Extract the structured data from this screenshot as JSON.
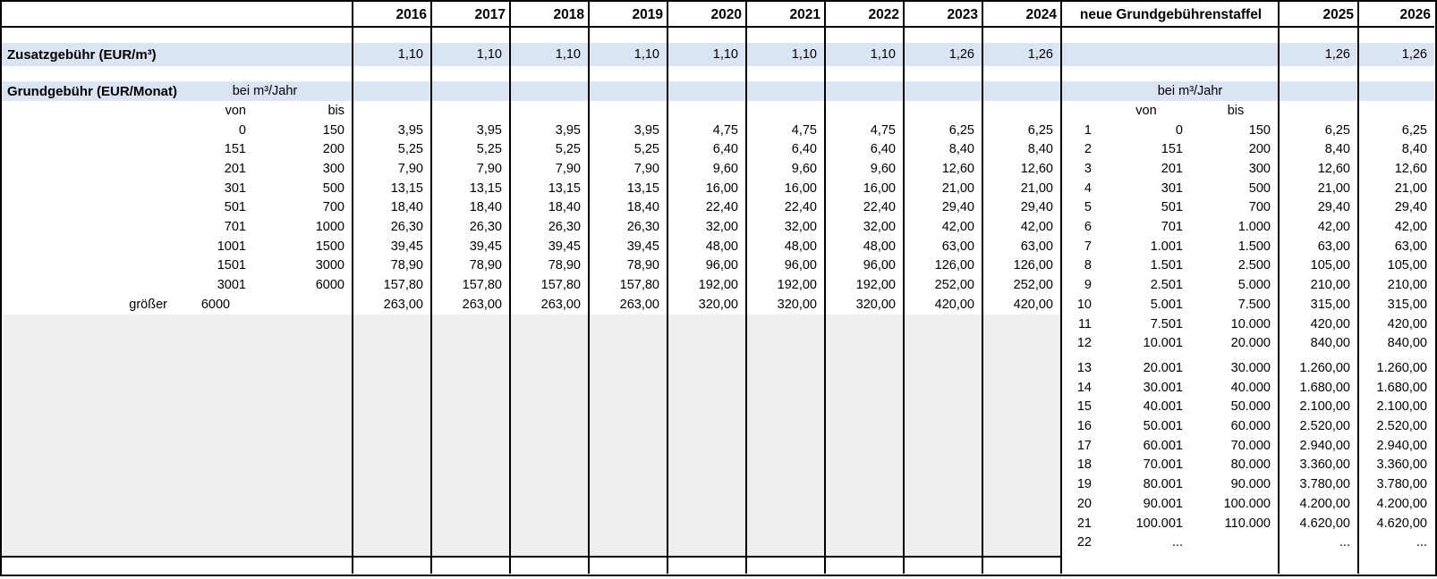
{
  "header": {
    "years_left": [
      "2016",
      "2017",
      "2018",
      "2019",
      "2020",
      "2021",
      "2022",
      "2023",
      "2024"
    ],
    "new_schedule_label": "neue Grundgebührenstaffel",
    "years_right": [
      "2025",
      "2026"
    ]
  },
  "zusatzgebuehr_row": {
    "label": "Zusatzgebühr (EUR/m³)",
    "values_left": [
      "1,10",
      "1,10",
      "1,10",
      "1,10",
      "1,10",
      "1,10",
      "1,10",
      "1,26",
      "1,26"
    ],
    "values_right": [
      "1,26",
      "1,26"
    ]
  },
  "grundgebuehr_section": {
    "label": "Grundgebühr (EUR/Monat)",
    "unit_label": "bei m³/Jahr",
    "von_label": "von",
    "bis_label": "bis",
    "rows": [
      {
        "label": "",
        "von": "0",
        "bis": "150",
        "values": [
          "3,95",
          "3,95",
          "3,95",
          "3,95",
          "4,75",
          "4,75",
          "4,75",
          "6,25",
          "6,25"
        ]
      },
      {
        "label": "",
        "von": "151",
        "bis": "200",
        "values": [
          "5,25",
          "5,25",
          "5,25",
          "5,25",
          "6,40",
          "6,40",
          "6,40",
          "8,40",
          "8,40"
        ]
      },
      {
        "label": "",
        "von": "201",
        "bis": "300",
        "values": [
          "7,90",
          "7,90",
          "7,90",
          "7,90",
          "9,60",
          "9,60",
          "9,60",
          "12,60",
          "12,60"
        ]
      },
      {
        "label": "",
        "von": "301",
        "bis": "500",
        "values": [
          "13,15",
          "13,15",
          "13,15",
          "13,15",
          "16,00",
          "16,00",
          "16,00",
          "21,00",
          "21,00"
        ]
      },
      {
        "label": "",
        "von": "501",
        "bis": "700",
        "values": [
          "18,40",
          "18,40",
          "18,40",
          "18,40",
          "22,40",
          "22,40",
          "22,40",
          "29,40",
          "29,40"
        ]
      },
      {
        "label": "",
        "von": "701",
        "bis": "1000",
        "values": [
          "26,30",
          "26,30",
          "26,30",
          "26,30",
          "32,00",
          "32,00",
          "32,00",
          "42,00",
          "42,00"
        ]
      },
      {
        "label": "",
        "von": "1001",
        "bis": "1500",
        "values": [
          "39,45",
          "39,45",
          "39,45",
          "39,45",
          "48,00",
          "48,00",
          "48,00",
          "63,00",
          "63,00"
        ]
      },
      {
        "label": "",
        "von": "1501",
        "bis": "3000",
        "values": [
          "78,90",
          "78,90",
          "78,90",
          "78,90",
          "96,00",
          "96,00",
          "96,00",
          "126,00",
          "126,00"
        ]
      },
      {
        "label": "",
        "von": "3001",
        "bis": "6000",
        "values": [
          "157,80",
          "157,80",
          "157,80",
          "157,80",
          "192,00",
          "192,00",
          "192,00",
          "252,00",
          "252,00"
        ]
      },
      {
        "label": "größer",
        "von": "6000",
        "bis": "",
        "values": [
          "263,00",
          "263,00",
          "263,00",
          "263,00",
          "320,00",
          "320,00",
          "320,00",
          "420,00",
          "420,00"
        ]
      }
    ]
  },
  "new_schedule_section": {
    "unit_label": "bei m³/Jahr",
    "von_label": "von",
    "bis_label": "bis",
    "rows": [
      {
        "nr": "1",
        "von": "0",
        "bis": "150",
        "v2025": "6,25",
        "v2026": "6,25"
      },
      {
        "nr": "2",
        "von": "151",
        "bis": "200",
        "v2025": "8,40",
        "v2026": "8,40"
      },
      {
        "nr": "3",
        "von": "201",
        "bis": "300",
        "v2025": "12,60",
        "v2026": "12,60"
      },
      {
        "nr": "4",
        "von": "301",
        "bis": "500",
        "v2025": "21,00",
        "v2026": "21,00"
      },
      {
        "nr": "5",
        "von": "501",
        "bis": "700",
        "v2025": "29,40",
        "v2026": "29,40"
      },
      {
        "nr": "6",
        "von": "701",
        "bis": "1.000",
        "v2025": "42,00",
        "v2026": "42,00"
      },
      {
        "nr": "7",
        "von": "1.001",
        "bis": "1.500",
        "v2025": "63,00",
        "v2026": "63,00"
      },
      {
        "nr": "8",
        "von": "1.501",
        "bis": "2.500",
        "v2025": "105,00",
        "v2026": "105,00"
      },
      {
        "nr": "9",
        "von": "2.501",
        "bis": "5.000",
        "v2025": "210,00",
        "v2026": "210,00"
      },
      {
        "nr": "10",
        "von": "5.001",
        "bis": "7.500",
        "v2025": "315,00",
        "v2026": "315,00"
      },
      {
        "nr": "11",
        "von": "7.501",
        "bis": "10.000",
        "v2025": "420,00",
        "v2026": "420,00"
      },
      {
        "nr": "12",
        "von": "10.001",
        "bis": "20.000",
        "v2025": "840,00",
        "v2026": "840,00"
      },
      {
        "nr": "13",
        "von": "20.001",
        "bis": "30.000",
        "v2025": "1.260,00",
        "v2026": "1.260,00"
      },
      {
        "nr": "14",
        "von": "30.001",
        "bis": "40.000",
        "v2025": "1.680,00",
        "v2026": "1.680,00"
      },
      {
        "nr": "15",
        "von": "40.001",
        "bis": "50.000",
        "v2025": "2.100,00",
        "v2026": "2.100,00"
      },
      {
        "nr": "16",
        "von": "50.001",
        "bis": "60.000",
        "v2025": "2.520,00",
        "v2026": "2.520,00"
      },
      {
        "nr": "17",
        "von": "60.001",
        "bis": "70.000",
        "v2025": "2.940,00",
        "v2026": "2.940,00"
      },
      {
        "nr": "18",
        "von": "70.001",
        "bis": "80.000",
        "v2025": "3.360,00",
        "v2026": "3.360,00"
      },
      {
        "nr": "19",
        "von": "80.001",
        "bis": "90.000",
        "v2025": "3.780,00",
        "v2026": "3.780,00"
      },
      {
        "nr": "20",
        "von": "90.001",
        "bis": "100.000",
        "v2025": "4.200,00",
        "v2026": "4.200,00"
      },
      {
        "nr": "21",
        "von": "100.001",
        "bis": "110.000",
        "v2025": "4.620,00",
        "v2026": "4.620,00"
      },
      {
        "nr": "22",
        "von": "...",
        "bis": "",
        "v2025": "...",
        "v2026": "..."
      }
    ]
  },
  "colors": {
    "highlight_blue": "#dbe4f2",
    "area_gray": "#efefef",
    "border_black": "#000000"
  }
}
